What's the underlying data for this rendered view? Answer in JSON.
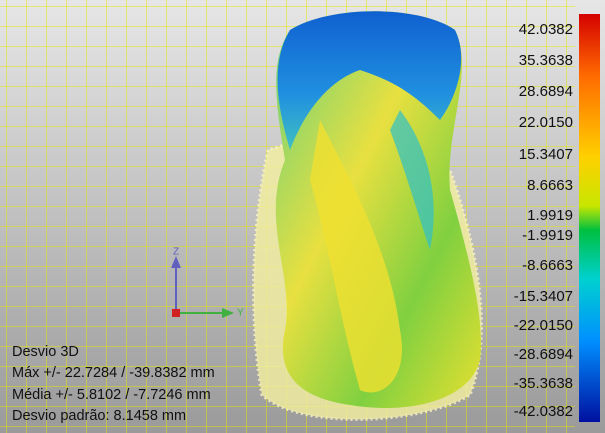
{
  "scale": {
    "labels": [
      "42.0382",
      "35.3638",
      "28.6894",
      "22.0150",
      "15.3407",
      "8.6663",
      "1.9919",
      "-1.9919",
      "-8.6663",
      "-15.3407",
      "-22.0150",
      "-28.6894",
      "-35.3638",
      "-42.0382"
    ]
  },
  "axes": {
    "z": "Z",
    "y": "Y"
  },
  "stats": {
    "title": "Desvio 3D",
    "max": "Máx +/- 22.7284 / -39.8382 mm",
    "mean": "Média +/- 5.8102 / -7.7246 mm",
    "std": "Desvio padrão: 8.1458 mm"
  }
}
